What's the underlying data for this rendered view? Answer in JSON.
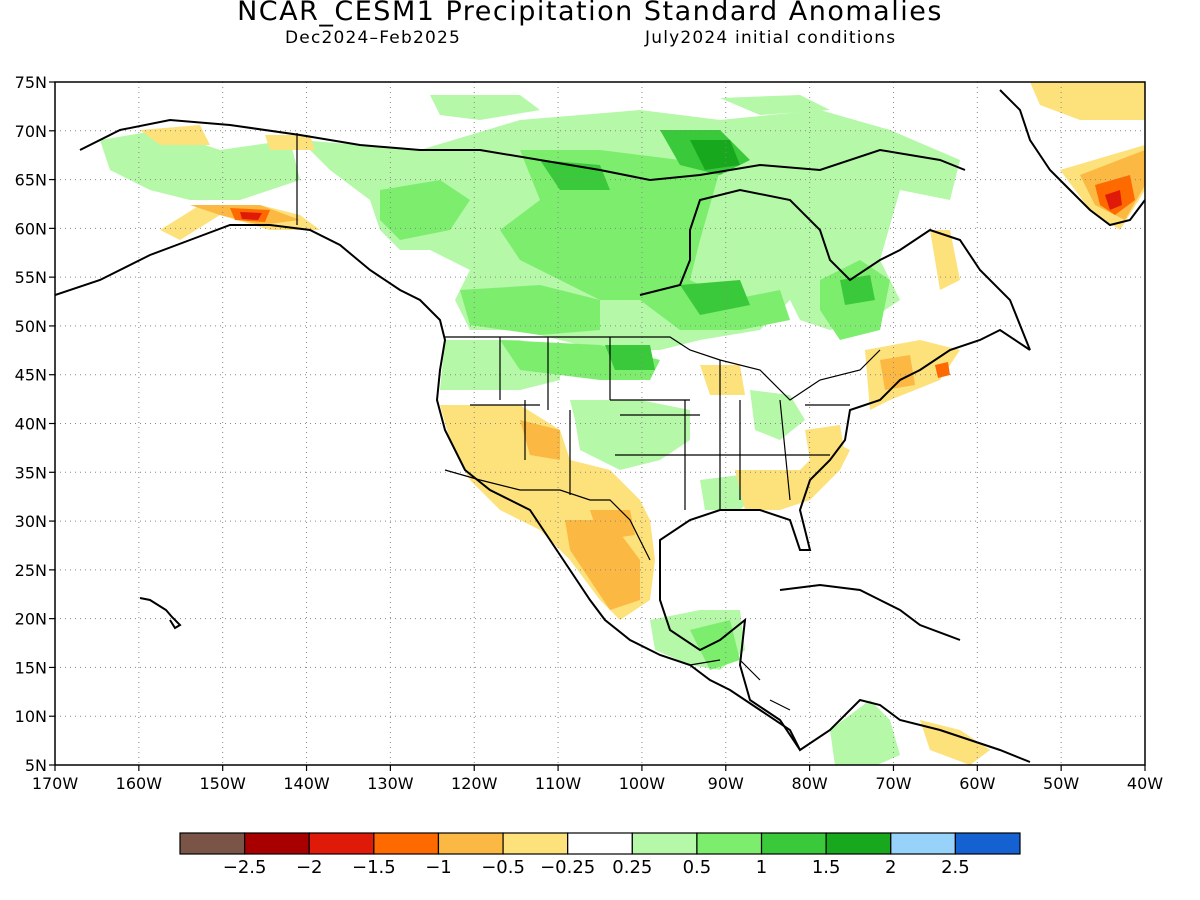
{
  "header": {
    "title": "NCAR_CESM1 Precipitation Standard Anomalies",
    "period": "Dec2024–Feb2025",
    "init": "July2024 initial conditions"
  },
  "map": {
    "lon_labels": [
      "170W",
      "160W",
      "150W",
      "140W",
      "130W",
      "120W",
      "110W",
      "100W",
      "90W",
      "80W",
      "70W",
      "60W",
      "50W",
      "40W"
    ],
    "lat_labels": [
      "75N",
      "70N",
      "65N",
      "60N",
      "55N",
      "50N",
      "45N",
      "40N",
      "35N",
      "30N",
      "25N",
      "20N",
      "15N",
      "10N",
      "5N"
    ],
    "lon_range": [
      -170,
      -40
    ],
    "lat_range": [
      5,
      75
    ],
    "grid": "dotted"
  },
  "colorbar": {
    "colors": [
      "#7a5446",
      "#a80000",
      "#e01a08",
      "#ff6a00",
      "#fbb842",
      "#fde17b",
      "#ffffff",
      "#b4f8a8",
      "#7ded6e",
      "#3ac93a",
      "#17a81e",
      "#96d2fa",
      "#1462d2"
    ],
    "labels": [
      "−2.5",
      "−2",
      "−1.5",
      "−1",
      "−0.5",
      "−0.25",
      "0.25",
      "0.5",
      "1",
      "1.5",
      "2",
      "2.5"
    ]
  }
}
